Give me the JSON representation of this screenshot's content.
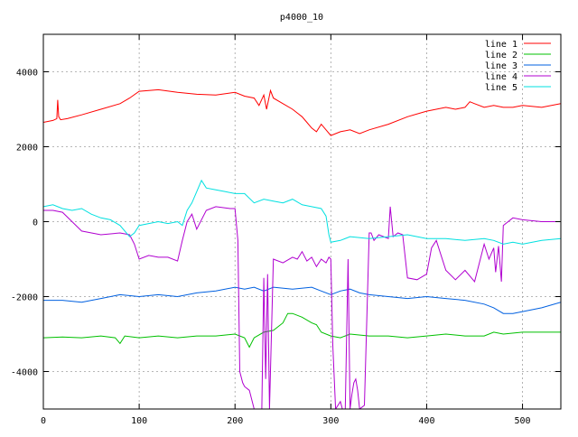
{
  "chart_data": {
    "type": "line",
    "title": "p4000_10",
    "xlabel": "",
    "ylabel": "",
    "xlim": [
      0,
      540
    ],
    "ylim": [
      -5000,
      5000
    ],
    "xticks": [
      0,
      100,
      200,
      300,
      400,
      500
    ],
    "yticks": [
      -4000,
      -2000,
      0,
      2000,
      4000
    ],
    "grid": true,
    "legend_position": "top-right",
    "series": [
      {
        "name": "line 1",
        "color": "#ff0000",
        "x": [
          0,
          10,
          14,
          15,
          16,
          18,
          25,
          40,
          60,
          80,
          90,
          100,
          120,
          140,
          160,
          180,
          200,
          210,
          220,
          225,
          230,
          233,
          237,
          240,
          250,
          260,
          270,
          275,
          280,
          285,
          290,
          295,
          300,
          310,
          320,
          330,
          340,
          360,
          380,
          400,
          420,
          430,
          440,
          445,
          450,
          460,
          470,
          480,
          490,
          500,
          520,
          540
        ],
        "y": [
          2650,
          2700,
          2750,
          3250,
          2800,
          2720,
          2750,
          2850,
          3000,
          3150,
          3300,
          3480,
          3520,
          3450,
          3400,
          3380,
          3450,
          3350,
          3300,
          3100,
          3380,
          3000,
          3500,
          3300,
          3150,
          3000,
          2800,
          2650,
          2500,
          2400,
          2600,
          2450,
          2300,
          2400,
          2450,
          2350,
          2450,
          2600,
          2800,
          2950,
          3050,
          3000,
          3050,
          3200,
          3150,
          3050,
          3100,
          3050,
          3050,
          3100,
          3050,
          3150
        ]
      },
      {
        "name": "line 2",
        "color": "#00c000",
        "x": [
          0,
          20,
          40,
          60,
          75,
          80,
          85,
          100,
          120,
          140,
          160,
          180,
          200,
          210,
          215,
          220,
          230,
          240,
          250,
          255,
          260,
          270,
          280,
          285,
          290,
          300,
          310,
          320,
          340,
          360,
          380,
          400,
          420,
          440,
          460,
          470,
          480,
          500,
          520,
          540
        ],
        "y": [
          -3100,
          -3080,
          -3100,
          -3050,
          -3100,
          -3250,
          -3050,
          -3100,
          -3050,
          -3100,
          -3050,
          -3050,
          -3000,
          -3100,
          -3350,
          -3100,
          -2950,
          -2900,
          -2700,
          -2450,
          -2450,
          -2550,
          -2700,
          -2750,
          -2950,
          -3050,
          -3100,
          -3000,
          -3050,
          -3050,
          -3100,
          -3050,
          -3000,
          -3050,
          -3050,
          -2950,
          -3000,
          -2950,
          -2950,
          -2950
        ]
      },
      {
        "name": "line 3",
        "color": "#0060e0",
        "x": [
          0,
          20,
          40,
          60,
          80,
          100,
          120,
          140,
          160,
          180,
          200,
          210,
          220,
          230,
          240,
          260,
          280,
          290,
          300,
          310,
          320,
          330,
          340,
          360,
          380,
          400,
          420,
          440,
          460,
          470,
          480,
          490,
          500,
          520,
          540
        ],
        "y": [
          -2100,
          -2100,
          -2150,
          -2050,
          -1950,
          -2000,
          -1950,
          -2000,
          -1900,
          -1850,
          -1750,
          -1800,
          -1750,
          -1850,
          -1750,
          -1800,
          -1750,
          -1850,
          -1950,
          -1850,
          -1800,
          -1900,
          -1950,
          -2000,
          -2050,
          -2000,
          -2050,
          -2100,
          -2200,
          -2300,
          -2450,
          -2450,
          -2400,
          -2300,
          -2150
        ]
      },
      {
        "name": "line 4",
        "color": "#b000d0",
        "x": [
          0,
          10,
          20,
          30,
          40,
          60,
          80,
          90,
          95,
          100,
          110,
          120,
          130,
          140,
          145,
          150,
          155,
          160,
          170,
          180,
          195,
          200,
          203,
          205,
          208,
          210,
          215,
          218,
          220,
          223,
          225,
          228,
          230,
          232,
          234,
          236,
          240,
          250,
          260,
          265,
          270,
          275,
          280,
          285,
          290,
          295,
          298,
          300,
          302,
          305,
          310,
          312,
          315,
          318,
          320,
          322,
          324,
          326,
          328,
          330,
          335,
          340,
          342,
          345,
          350,
          355,
          360,
          362,
          365,
          370,
          375,
          380,
          390,
          400,
          405,
          410,
          420,
          430,
          440,
          450,
          455,
          460,
          465,
          470,
          472,
          475,
          478,
          480,
          490,
          500,
          520,
          540
        ],
        "y": [
          300,
          300,
          250,
          0,
          -250,
          -350,
          -300,
          -350,
          -600,
          -1000,
          -900,
          -950,
          -950,
          -1050,
          -500,
          0,
          200,
          -200,
          300,
          400,
          350,
          350,
          -500,
          -4000,
          -4300,
          -4400,
          -4500,
          -4800,
          -5000,
          -5000,
          -5000,
          -5000,
          -1500,
          -4200,
          -1400,
          -5000,
          -1000,
          -1100,
          -950,
          -1000,
          -800,
          -1050,
          -950,
          -1200,
          -1000,
          -1100,
          -950,
          -1000,
          -3300,
          -5000,
          -4800,
          -5000,
          -5000,
          -1000,
          -5000,
          -4600,
          -4300,
          -4200,
          -4500,
          -5000,
          -4900,
          -300,
          -300,
          -500,
          -350,
          -400,
          -450,
          400,
          -400,
          -300,
          -350,
          -1500,
          -1550,
          -1400,
          -700,
          -500,
          -1300,
          -1550,
          -1300,
          -1600,
          -1100,
          -600,
          -1000,
          -700,
          -1350,
          -650,
          -1600,
          -100,
          100,
          50,
          0,
          0
        ]
      },
      {
        "name": "line 5",
        "color": "#00e0e0",
        "x": [
          0,
          10,
          20,
          30,
          40,
          50,
          60,
          70,
          80,
          90,
          95,
          100,
          110,
          120,
          130,
          140,
          145,
          150,
          155,
          160,
          165,
          170,
          180,
          190,
          200,
          210,
          220,
          230,
          240,
          250,
          260,
          270,
          280,
          290,
          295,
          298,
          300,
          310,
          320,
          340,
          360,
          380,
          400,
          420,
          440,
          460,
          470,
          480,
          490,
          500,
          520,
          540
        ],
        "y": [
          400,
          450,
          350,
          300,
          350,
          200,
          100,
          50,
          -100,
          -400,
          -300,
          -100,
          -50,
          0,
          -50,
          0,
          -100,
          300,
          500,
          800,
          1100,
          900,
          850,
          800,
          750,
          750,
          500,
          600,
          550,
          500,
          600,
          450,
          400,
          350,
          150,
          -350,
          -550,
          -500,
          -400,
          -450,
          -400,
          -350,
          -450,
          -450,
          -500,
          -450,
          -500,
          -600,
          -550,
          -600,
          -500,
          -450
        ]
      }
    ]
  }
}
